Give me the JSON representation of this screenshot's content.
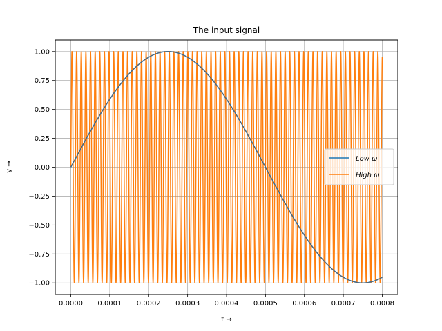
{
  "chart_data": {
    "type": "line",
    "title": "The input signal",
    "xlabel": "t →",
    "ylabel": "y →",
    "xlim": [
      -4e-05,
      0.00084
    ],
    "ylim": [
      -1.1,
      1.1
    ],
    "grid": true,
    "legend_position": "center-right",
    "x_ticks": [
      0,
      0.0001,
      0.0002,
      0.0003,
      0.0004,
      0.0005,
      0.0006,
      0.0007,
      0.0008
    ],
    "x_tick_labels": [
      "0.0000",
      "0.0001",
      "0.0002",
      "0.0003",
      "0.0004",
      "0.0005",
      "0.0006",
      "0.0007",
      "0.0008"
    ],
    "y_ticks": [
      -1.0,
      -0.75,
      -0.5,
      -0.25,
      0.0,
      0.25,
      0.5,
      0.75,
      1.0
    ],
    "y_tick_labels": [
      "−1.00",
      "−0.75",
      "−0.50",
      "−0.25",
      "0.00",
      "0.25",
      "0.50",
      "0.75",
      "1.00"
    ],
    "series": [
      {
        "name": "Low ω",
        "color": "#1f77b4",
        "function": "sin",
        "frequency_hz": 1000,
        "x_start": 0,
        "x_end": 0.0008
      },
      {
        "name": "High ω",
        "color": "#ff7f0e",
        "function": "sin",
        "frequency_hz": 84000,
        "x_start": 0,
        "x_end": 0.0008
      }
    ]
  }
}
